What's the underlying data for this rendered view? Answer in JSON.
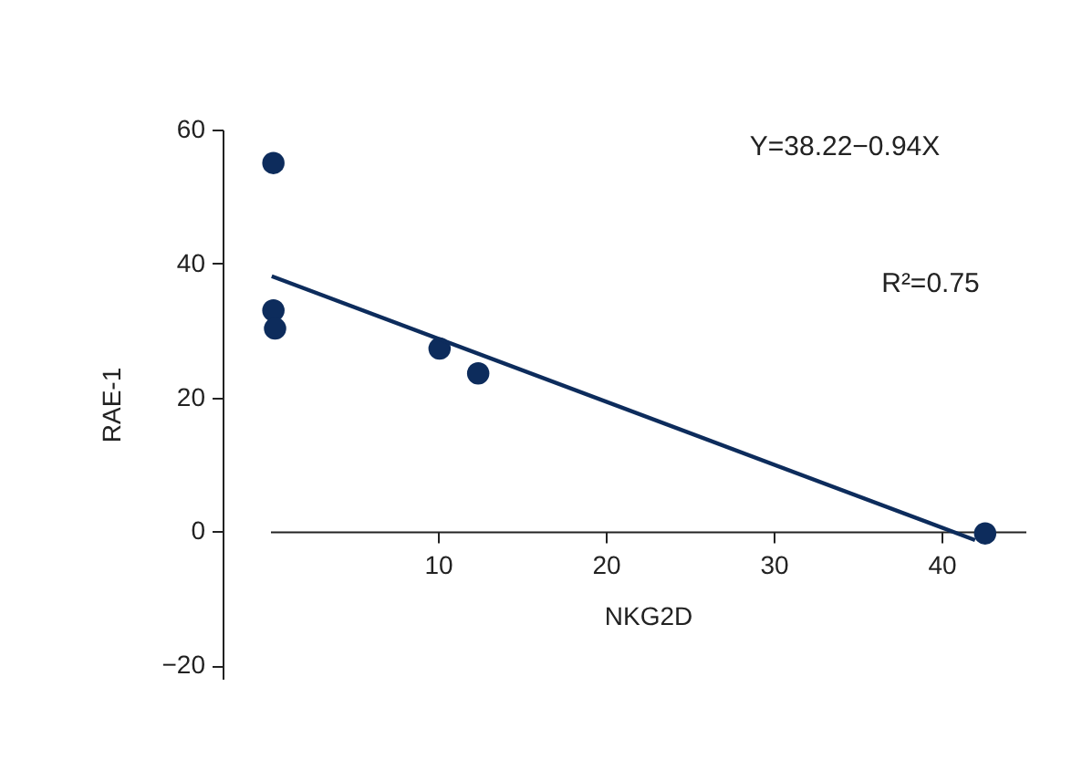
{
  "chart_data": {
    "type": "scatter",
    "xlabel": "NKG2D",
    "ylabel": "RAE-1",
    "xlim": [
      0,
      45
    ],
    "ylim": [
      -22,
      60
    ],
    "xticks": [
      10,
      20,
      30,
      40
    ],
    "yticks": [
      -20,
      0,
      20,
      40,
      60
    ],
    "grid": false,
    "series": [
      {
        "marker": "circle",
        "color": "#0d2c5c",
        "x": [
          0.2,
          0.2,
          0.3,
          10.1,
          12.4,
          42.6
        ],
        "values": [
          55,
          33,
          30.3,
          27.3,
          23.6,
          -0.3
        ]
      },
      {
        "type": "line",
        "color": "#0d2c5c",
        "x": [
          0.1,
          42
        ],
        "values": [
          38.1,
          -1.3
        ]
      }
    ],
    "annotations": [
      "Y=38.22−0.94X",
      "R²=0.75"
    ]
  }
}
